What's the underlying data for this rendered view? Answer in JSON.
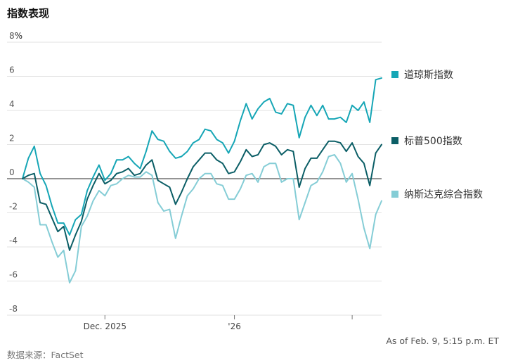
{
  "header": {
    "title": "指数表现"
  },
  "footer": {
    "source": "数据来源：FactSet",
    "as_of": "As of Feb. 9, 5:15 p.m. ET"
  },
  "colors": {
    "dow": "#16a6b6",
    "sp500": "#0b5e66",
    "nasdaq": "#85cdd6",
    "grid": "#e2e2e2",
    "zero": "#555555"
  },
  "chart_data": {
    "type": "line",
    "title": "指数表现",
    "ylabel": "%",
    "ylim": [
      -8,
      8
    ],
    "y_ticks": [
      {
        "value": 8,
        "label": "8"
      },
      {
        "value": 6,
        "label": "6"
      },
      {
        "value": 4,
        "label": "4"
      },
      {
        "value": 2,
        "label": "2"
      },
      {
        "value": 0,
        "label": "0"
      },
      {
        "value": -2,
        "label": "-2"
      },
      {
        "value": -4,
        "label": "-4"
      },
      {
        "value": -6,
        "label": "-6"
      },
      {
        "value": -8,
        "label": "-8"
      }
    ],
    "y_unit": "%",
    "x_ticks": [
      {
        "index": 14,
        "label": "Dec. 2025"
      },
      {
        "index": 36,
        "label": "'26"
      },
      {
        "index": 56,
        "label": ""
      }
    ],
    "grid": true,
    "legend_position": "right",
    "series": [
      {
        "name": "道琼斯指数",
        "color": "#16a6b6",
        "values": [
          0,
          1.2,
          1.9,
          0.3,
          -0.4,
          -1.6,
          -2.6,
          -2.6,
          -3.3,
          -2.4,
          -2.1,
          -0.7,
          0.1,
          0.8,
          -0.1,
          0.3,
          1.1,
          1.1,
          1.3,
          0.9,
          0.6,
          1.6,
          2.8,
          2.3,
          2.2,
          1.6,
          1.2,
          1.3,
          1.6,
          2.1,
          2.3,
          2.9,
          2.8,
          2.3,
          2.1,
          1.5,
          2.2,
          3.4,
          4.4,
          3.5,
          4.1,
          4.5,
          4.7,
          3.9,
          3.8,
          4.4,
          4.3,
          2.4,
          3.6,
          4.3,
          3.7,
          4.3,
          3.5,
          3.5,
          3.6,
          3.3,
          4.3,
          4.0,
          4.5,
          3.3,
          5.8,
          5.9
        ]
      },
      {
        "name": "标普500指数",
        "color": "#0b5e66",
        "values": [
          0,
          0.2,
          0.3,
          -1.4,
          -1.5,
          -2.3,
          -3.1,
          -2.8,
          -4.2,
          -3.3,
          -2.5,
          -1.2,
          -0.4,
          0.3,
          -0.3,
          -0.1,
          0.3,
          0.4,
          0.6,
          0.2,
          0.3,
          0.8,
          1.1,
          -0.1,
          -0.3,
          -0.5,
          -1.5,
          -0.8,
          0.0,
          0.7,
          1.1,
          1.5,
          1.5,
          1.1,
          0.9,
          0.3,
          0.4,
          1.0,
          1.7,
          1.3,
          1.4,
          2.0,
          2.1,
          1.9,
          1.4,
          1.7,
          1.6,
          -0.5,
          0.6,
          1.2,
          1.2,
          1.7,
          2.2,
          2.2,
          2.1,
          1.6,
          2.1,
          1.3,
          0.9,
          -0.4,
          1.5,
          2.0
        ]
      },
      {
        "name": "纳斯达克综合指数",
        "color": "#85cdd6",
        "values": [
          0,
          -0.2,
          -0.5,
          -2.7,
          -2.7,
          -3.7,
          -4.6,
          -4.2,
          -6.1,
          -5.4,
          -2.8,
          -2.2,
          -1.3,
          -0.7,
          -1.0,
          -0.4,
          -0.3,
          0.0,
          0.2,
          0.1,
          0.1,
          0.4,
          0.2,
          -1.4,
          -1.9,
          -1.8,
          -3.5,
          -2.2,
          -1.0,
          -0.6,
          0.0,
          0.3,
          0.3,
          -0.3,
          -0.4,
          -1.2,
          -1.2,
          -0.6,
          0.2,
          0.3,
          -0.2,
          0.7,
          0.9,
          0.9,
          -0.2,
          0.0,
          0.0,
          -2.4,
          -1.4,
          -0.4,
          -0.2,
          0.4,
          1.3,
          1.4,
          0.9,
          -0.2,
          0.3,
          -1.2,
          -2.9,
          -4.1,
          -2.1,
          -1.3
        ]
      }
    ]
  }
}
